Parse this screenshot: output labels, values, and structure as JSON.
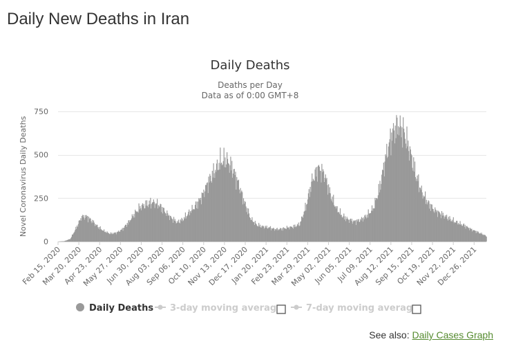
{
  "page": {
    "title": "Daily New Deaths in Iran",
    "see_also_label": "See also:",
    "see_also_link": "Daily Cases Graph"
  },
  "chart_data": {
    "type": "bar",
    "title": "Daily Deaths",
    "subtitle_line1": "Deaths per Day",
    "subtitle_line2": "Data as of 0:00 GMT+8",
    "xlabel": "",
    "ylabel": "Novel Coronavirus Daily Deaths",
    "ylim": [
      0,
      750
    ],
    "yticks": [
      0,
      250,
      500,
      750
    ],
    "x_range": [
      "2020-02-15",
      "2022-01-15"
    ],
    "x_tick_labels": [
      "Feb 15, 2020",
      "Mar 20, 2020",
      "Apr 23, 2020",
      "May 27, 2020",
      "Jun 30, 2020",
      "Aug 03, 2020",
      "Sep 06, 2020",
      "Oct 10, 2020",
      "Nov 13, 2020",
      "Dec 17, 2020",
      "Jan 20, 2021",
      "Feb 23, 2021",
      "Mar 29, 2021",
      "May 02, 2021",
      "Jun 05, 2021",
      "Jul 09, 2021",
      "Aug 12, 2021",
      "Sep 15, 2021",
      "Oct 19, 2021",
      "Nov 22, 2021",
      "Dec 26, 2021"
    ],
    "grid": true,
    "bar_color": "#999999",
    "series": [
      {
        "name": "Daily Deaths",
        "x": [
          "2020-02-15",
          "2020-02-25",
          "2020-03-06",
          "2020-03-16",
          "2020-03-24",
          "2020-04-01",
          "2020-04-10",
          "2020-04-20",
          "2020-04-30",
          "2020-05-10",
          "2020-05-20",
          "2020-05-30",
          "2020-06-09",
          "2020-06-19",
          "2020-06-29",
          "2020-07-09",
          "2020-07-19",
          "2020-07-29",
          "2020-08-08",
          "2020-08-18",
          "2020-08-28",
          "2020-09-07",
          "2020-09-17",
          "2020-09-27",
          "2020-10-07",
          "2020-10-17",
          "2020-10-27",
          "2020-11-06",
          "2020-11-16",
          "2020-11-26",
          "2020-12-06",
          "2020-12-16",
          "2020-12-26",
          "2021-01-05",
          "2021-01-15",
          "2021-01-25",
          "2021-02-04",
          "2021-02-14",
          "2021-02-24",
          "2021-03-06",
          "2021-03-16",
          "2021-03-26",
          "2021-04-05",
          "2021-04-15",
          "2021-04-25",
          "2021-05-05",
          "2021-05-15",
          "2021-05-25",
          "2021-06-04",
          "2021-06-14",
          "2021-06-24",
          "2021-07-04",
          "2021-07-14",
          "2021-07-24",
          "2021-08-03",
          "2021-08-13",
          "2021-08-23",
          "2021-09-02",
          "2021-09-12",
          "2021-09-22",
          "2021-10-02",
          "2021-10-12",
          "2021-10-22",
          "2021-11-01",
          "2021-11-11",
          "2021-11-21",
          "2021-12-01",
          "2021-12-11",
          "2021-12-21",
          "2021-12-31",
          "2022-01-10",
          "2022-01-15"
        ],
        "values": [
          0,
          2,
          15,
          80,
          140,
          145,
          120,
          85,
          60,
          45,
          50,
          70,
          110,
          160,
          200,
          215,
          225,
          210,
          170,
          135,
          110,
          130,
          170,
          205,
          260,
          340,
          400,
          460,
          470,
          420,
          330,
          220,
          130,
          95,
          85,
          80,
          70,
          72,
          80,
          85,
          100,
          200,
          350,
          420,
          390,
          270,
          190,
          145,
          125,
          115,
          125,
          150,
          190,
          300,
          480,
          610,
          670,
          630,
          520,
          380,
          280,
          220,
          180,
          160,
          140,
          120,
          105,
          90,
          70,
          55,
          40,
          30
        ]
      }
    ],
    "legend": {
      "position": "bottom-center",
      "items": [
        {
          "label": "Daily Deaths",
          "color": "#999999",
          "active": true
        },
        {
          "label": "3-day moving average",
          "color": "#cccccc",
          "active": false
        },
        {
          "label": "7-day moving average",
          "color": "#cccccc",
          "active": false
        }
      ]
    }
  }
}
